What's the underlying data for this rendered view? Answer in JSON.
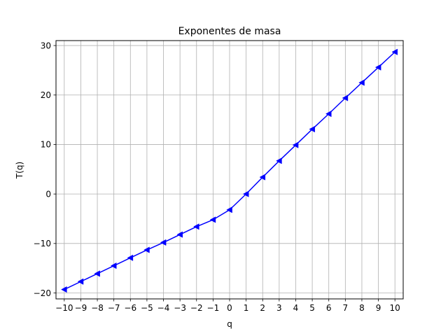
{
  "chart_data": {
    "type": "line",
    "title": "Exponentes de masa",
    "xlabel": "q",
    "ylabel": "T(q)",
    "xlim": [
      -10.5,
      10.5
    ],
    "ylim": [
      -21.2,
      31.0
    ],
    "grid": true,
    "x_ticks": [
      -10,
      -9,
      -8,
      -7,
      -6,
      -5,
      -4,
      -3,
      -2,
      -1,
      0,
      1,
      2,
      3,
      4,
      5,
      6,
      7,
      8,
      9,
      10
    ],
    "x_tick_labels": [
      "−10",
      "−9",
      "−8",
      "−7",
      "−6",
      "−5",
      "−4",
      "−3",
      "−2",
      "−1",
      "0",
      "1",
      "2",
      "3",
      "4",
      "5",
      "6",
      "7",
      "8",
      "9",
      "10"
    ],
    "y_ticks": [
      -20,
      -10,
      0,
      10,
      20,
      30
    ],
    "y_tick_labels": [
      "−20",
      "−10",
      "0",
      "10",
      "20",
      "30"
    ],
    "series": [
      {
        "color": "#0000ff",
        "marker": "triangle-left",
        "x": [
          -10,
          -9,
          -8,
          -7,
          -6,
          -5,
          -4,
          -3,
          -2,
          -1,
          0,
          1,
          2,
          3,
          4,
          5,
          6,
          7,
          8,
          9,
          10
        ],
        "y": [
          -19.3,
          -17.7,
          -16.1,
          -14.5,
          -12.9,
          -11.3,
          -9.8,
          -8.2,
          -6.6,
          -5.2,
          -3.2,
          0.0,
          3.4,
          6.7,
          9.9,
          13.1,
          16.2,
          19.4,
          22.5,
          25.6,
          28.7
        ]
      }
    ]
  }
}
